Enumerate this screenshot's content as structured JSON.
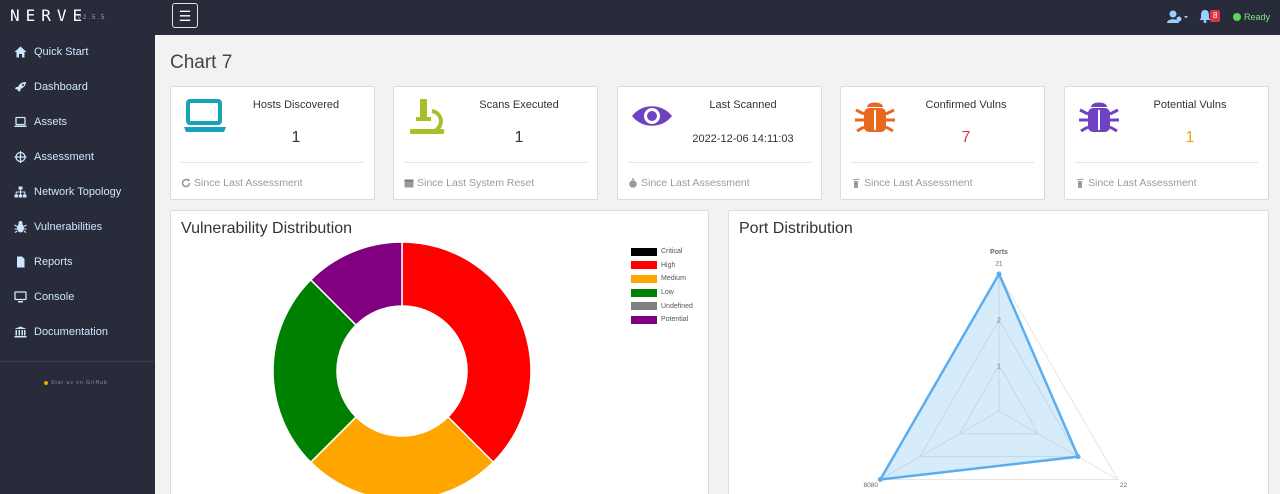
{
  "brand": {
    "name": "NERVE",
    "version": "v2.5.5"
  },
  "topbar": {
    "notifications": "8",
    "status": "Ready"
  },
  "sidebar": {
    "items": [
      {
        "label": "Quick Start",
        "icon": "home-icon"
      },
      {
        "label": "Dashboard",
        "icon": "rocket-icon"
      },
      {
        "label": "Assets",
        "icon": "laptop-icon"
      },
      {
        "label": "Assessment",
        "icon": "crosshair-icon"
      },
      {
        "label": "Network Topology",
        "icon": "sitemap-icon"
      },
      {
        "label": "Vulnerabilities",
        "icon": "bug-icon"
      },
      {
        "label": "Reports",
        "icon": "file-icon"
      },
      {
        "label": "Console",
        "icon": "monitor-icon"
      },
      {
        "label": "Documentation",
        "icon": "bank-icon"
      }
    ],
    "star_text": "Star us on GitHub"
  },
  "page": {
    "title": "Chart 7"
  },
  "cards": [
    {
      "label": "Hosts Discovered",
      "value": "1",
      "footer": "Since Last Assessment",
      "icon": "laptop-icon",
      "color": "#17a2b8"
    },
    {
      "label": "Scans Executed",
      "value": "1",
      "footer": "Since Last System Reset",
      "icon": "microscope-icon",
      "color": "#a3c22a"
    },
    {
      "label": "Last Scanned",
      "value": "2022-12-06 14:11:03",
      "footer": "Since Last Assessment",
      "icon": "eye-icon",
      "color": "#6f42c1"
    },
    {
      "label": "Confirmed Vulns",
      "value": "7",
      "footer": "Since Last Assessment",
      "icon": "bug-icon",
      "color": "#e8681f",
      "value_color": "#dc3545"
    },
    {
      "label": "Potential Vulns",
      "value": "1",
      "footer": "Since Last Assessment",
      "icon": "bug-icon",
      "color": "#6f42c1",
      "value_color": "#f0a500"
    }
  ],
  "vuln_panel": {
    "title": "Vulnerability Distribution"
  },
  "port_panel": {
    "title": "Port Distribution"
  },
  "chart_data": [
    {
      "type": "pie",
      "title": "Vulnerability Distribution",
      "categories": [
        "Critical",
        "High",
        "Medium",
        "Low",
        "Undefined",
        "Potential"
      ],
      "values": [
        0,
        3,
        2,
        2,
        0,
        1
      ],
      "colors": [
        "#000000",
        "#ff0000",
        "#ffa500",
        "#008000",
        "#808080",
        "#800080"
      ],
      "legend": "top-right"
    },
    {
      "type": "radar",
      "title": "Ports",
      "categories": [
        "21",
        "22",
        "8080"
      ],
      "series": [
        {
          "name": "",
          "values": [
            3,
            2,
            3
          ]
        }
      ],
      "ticks": [
        "1",
        "2"
      ],
      "range": [
        0,
        3
      ]
    }
  ]
}
